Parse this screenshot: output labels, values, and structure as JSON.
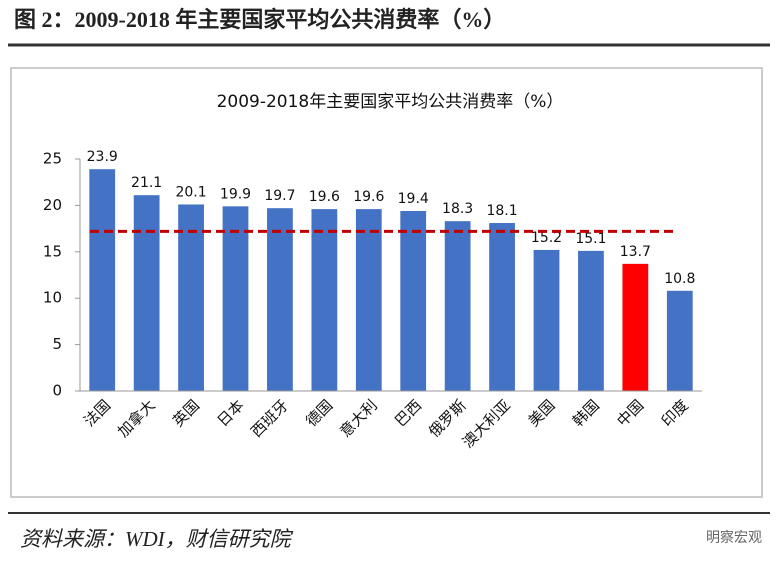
{
  "header": {
    "title": "图 2：2009-2018 年主要国家平均公共消费率（%）"
  },
  "chart_data": {
    "type": "bar",
    "title": "2009-2018年主要国家平均公共消费率（%）",
    "categories": [
      "法国",
      "加拿大",
      "英国",
      "日本",
      "西班牙",
      "德国",
      "意大利",
      "巴西",
      "俄罗斯",
      "澳大利亚",
      "美国",
      "韩国",
      "中国",
      "印度"
    ],
    "values": [
      23.9,
      21.1,
      20.1,
      19.9,
      19.7,
      19.6,
      19.6,
      19.4,
      18.3,
      18.1,
      15.2,
      15.1,
      13.7,
      10.8
    ],
    "colors": [
      "#4472c4",
      "#4472c4",
      "#4472c4",
      "#4472c4",
      "#4472c4",
      "#4472c4",
      "#4472c4",
      "#4472c4",
      "#4472c4",
      "#4472c4",
      "#4472c4",
      "#4472c4",
      "#ff0000",
      "#4472c4"
    ],
    "ylim": [
      0,
      25
    ],
    "yticks": [
      0,
      5,
      10,
      15,
      20,
      25
    ],
    "reference_line": {
      "value": 17.2,
      "color": "#c00000"
    }
  },
  "footer": {
    "source": "资料来源：WDI，财信研究院",
    "watermark": "明察宏观"
  }
}
